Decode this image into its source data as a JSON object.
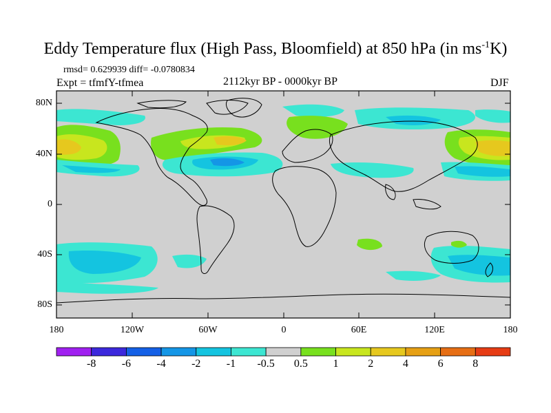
{
  "title_main": "Eddy Temperature flux (High Pass, Bloomfield) at 850 hPa (in ms",
  "title_sup": "-1",
  "title_end": "K)",
  "stats": "rmsd= 0.629939 diff= -0.0780834",
  "expt": "Expt = tfmfY-tfmea",
  "period": "2112kyr BP - 0000kyr BP",
  "season": "DJF",
  "lat_labels": [
    "80N",
    "40N",
    "0",
    "40S",
    "80S"
  ],
  "lon_labels": [
    "180",
    "120W",
    "60W",
    "0",
    "60E",
    "120E",
    "180"
  ],
  "colorbar": {
    "labels": [
      "-8",
      "-6",
      "-4",
      "-2",
      "-1",
      "-0.5",
      "0.5",
      "1",
      "2",
      "4",
      "6",
      "8"
    ],
    "colors": [
      "#a020f0",
      "#3c28dc",
      "#1460e6",
      "#1496e6",
      "#14c4e0",
      "#3ce6d2",
      "#d0d0d0",
      "#78e01e",
      "#c8e61e",
      "#e6c81e",
      "#e6a014",
      "#e66e14",
      "#e63c14"
    ]
  },
  "colors": {
    "land_ocean_bg": "#d0d0d0",
    "coast": "#000000"
  }
}
